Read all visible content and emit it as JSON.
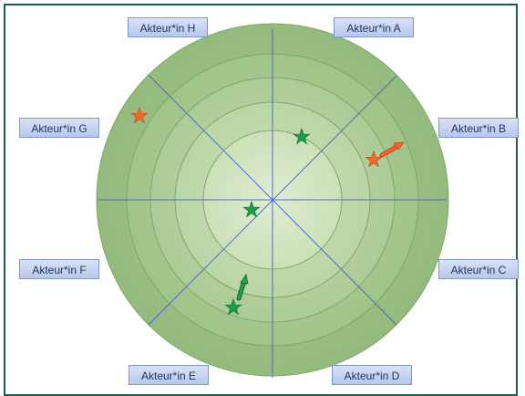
{
  "actors": {
    "a": "Akteur*in A",
    "b": "Akteur*in B",
    "c": "Akteur*in C",
    "d": "Akteur*in D",
    "e": "Akteur*in E",
    "f": "Akteur*in F",
    "g": "Akteur*in G",
    "h": "Akteur*in H"
  },
  "rings": 5,
  "sectors": 8,
  "markers": [
    {
      "kind": "star",
      "color": "#ef6b2c",
      "sector": "G",
      "ring": 5
    },
    {
      "kind": "star",
      "color": "#19a04a",
      "sector": "A",
      "ring": 2
    },
    {
      "kind": "star",
      "color": "#ef6b2c",
      "sector": "B",
      "ring": 4,
      "arrow": "outward",
      "arrow_color": "#e24e1b"
    },
    {
      "kind": "star",
      "color": "#19a04a",
      "sector": "center",
      "ring": 1
    },
    {
      "kind": "star",
      "color": "#19a04a",
      "sector": "E",
      "ring": 4,
      "arrow": "inward",
      "arrow_color": "#1e9442"
    }
  ],
  "colors": {
    "ring_outer": "#9fc486",
    "ring_inner": "#d8e9cb",
    "spokes": "#4a6fc9",
    "frame": "#1e5e4a",
    "label_fill": "#c6d3f0",
    "label_border": "#7f97c9",
    "label_text": "#1f3760"
  }
}
